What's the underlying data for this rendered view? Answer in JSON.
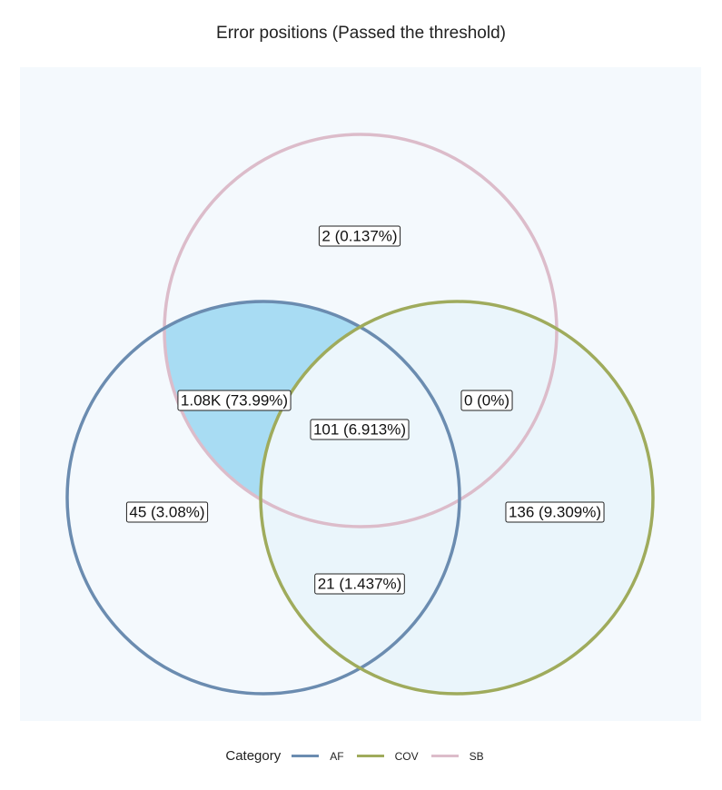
{
  "chart_data": {
    "type": "venn",
    "title": "Error positions (Passed the threshold)",
    "sets": [
      "AF",
      "COV",
      "SB"
    ],
    "regions": [
      {
        "sets": [
          "SB"
        ],
        "label": "2 (0.137%)",
        "count": 2,
        "percent": 0.137
      },
      {
        "sets": [
          "AF",
          "SB"
        ],
        "label": "1.08K (73.99%)",
        "count": 1080,
        "percent": 73.99
      },
      {
        "sets": [
          "COV",
          "SB"
        ],
        "label": "0 (0%)",
        "count": 0,
        "percent": 0
      },
      {
        "sets": [
          "AF",
          "COV",
          "SB"
        ],
        "label": "101 (6.913%)",
        "count": 101,
        "percent": 6.913
      },
      {
        "sets": [
          "AF"
        ],
        "label": "45 (3.08%)",
        "count": 45,
        "percent": 3.08
      },
      {
        "sets": [
          "COV"
        ],
        "label": "136 (9.309%)",
        "count": 136,
        "percent": 9.309
      },
      {
        "sets": [
          "AF",
          "COV"
        ],
        "label": "21 (1.437%)",
        "count": 21,
        "percent": 1.437
      }
    ],
    "legend": {
      "title": "Category",
      "placement": "bottom",
      "items": [
        {
          "name": "AF",
          "color": "#6b8cb0"
        },
        {
          "name": "COV",
          "color": "#9fab5c"
        },
        {
          "name": "SB",
          "color": "#dcbcca"
        }
      ]
    },
    "fill_colors": {
      "background": "#f4f9fd",
      "low": "#eef6fb",
      "high": "#a8dcf3"
    }
  }
}
